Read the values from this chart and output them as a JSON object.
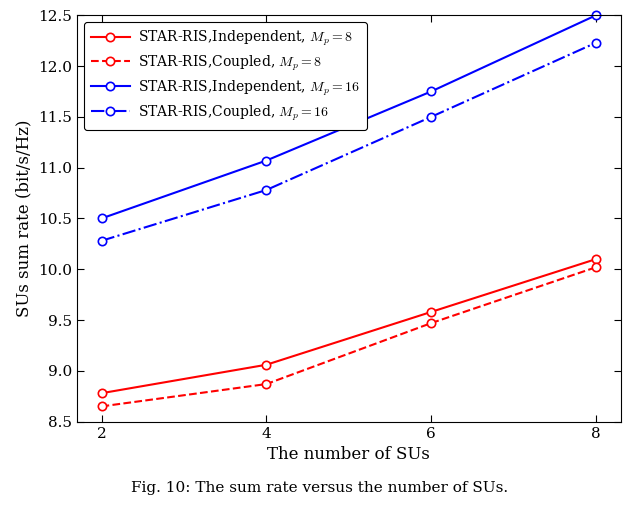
{
  "x": [
    2,
    4,
    6,
    8
  ],
  "series": [
    {
      "label": "STAR-RIS,Independent, $M_p = 8$",
      "values": [
        8.78,
        9.06,
        9.58,
        10.1
      ],
      "color": "#FF0000",
      "linestyle": "-",
      "marker": "o"
    },
    {
      "label": "STAR-RIS,Coupled, $M_p = 8$",
      "values": [
        8.65,
        8.87,
        9.47,
        10.02
      ],
      "color": "#FF0000",
      "linestyle": "--",
      "marker": "o"
    },
    {
      "label": "STAR-RIS,Independent, $M_p = 16$",
      "values": [
        10.5,
        11.07,
        11.75,
        12.5
      ],
      "color": "#0000FF",
      "linestyle": "-",
      "marker": "o"
    },
    {
      "label": "STAR-RIS,Coupled, $M_p = 16$",
      "values": [
        10.28,
        10.78,
        11.5,
        12.23
      ],
      "color": "#0000FF",
      "linestyle": "-.",
      "marker": "o"
    }
  ],
  "xlabel": "The number of SUs",
  "ylabel": "SUs sum rate (bit/s/Hz)",
  "ylim": [
    8.5,
    12.5
  ],
  "xlim": [
    1.7,
    8.3
  ],
  "xticks": [
    2,
    4,
    6,
    8
  ],
  "yticks": [
    8.5,
    9.0,
    9.5,
    10.0,
    10.5,
    11.0,
    11.5,
    12.0,
    12.5
  ],
  "caption": "Fig. 10: The sum rate versus the number of SUs.",
  "markersize": 6,
  "linewidth": 1.5
}
